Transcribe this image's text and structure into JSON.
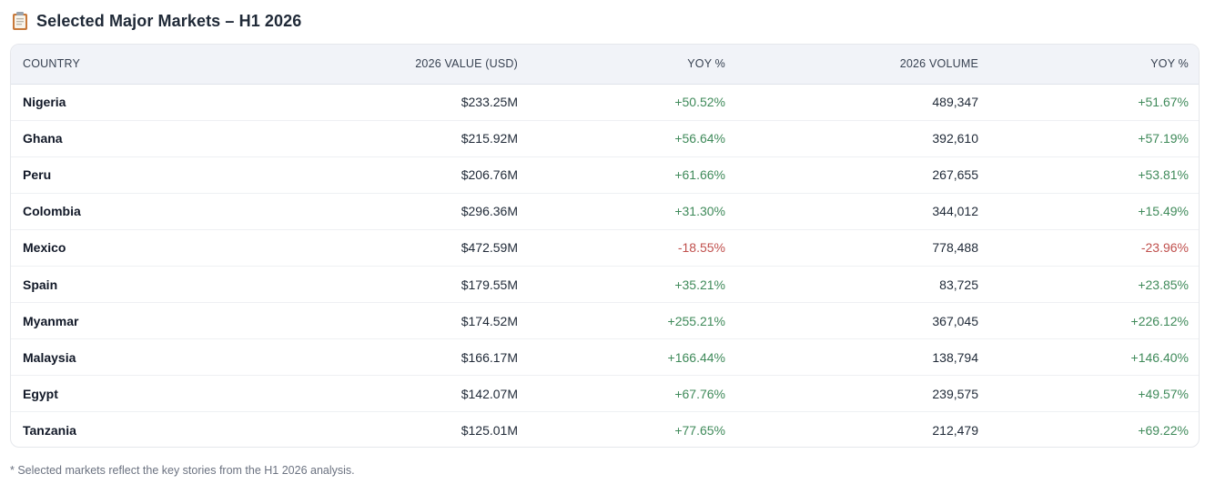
{
  "title": "Selected Major Markets – H1 2026",
  "icon": "clipboard-icon",
  "table": {
    "headers": [
      "COUNTRY",
      "2026 VALUE (USD)",
      "YOY %",
      "2026 VOLUME",
      "YOY %"
    ],
    "rows": [
      {
        "country": "Nigeria",
        "value": "$233.25M",
        "value_yoy": "+50.52%",
        "volume": "489,347",
        "volume_yoy": "+51.67%"
      },
      {
        "country": "Ghana",
        "value": "$215.92M",
        "value_yoy": "+56.64%",
        "volume": "392,610",
        "volume_yoy": "+57.19%"
      },
      {
        "country": "Peru",
        "value": "$206.76M",
        "value_yoy": "+61.66%",
        "volume": "267,655",
        "volume_yoy": "+53.81%"
      },
      {
        "country": "Colombia",
        "value": "$296.36M",
        "value_yoy": "+31.30%",
        "volume": "344,012",
        "volume_yoy": "+15.49%"
      },
      {
        "country": "Mexico",
        "value": "$472.59M",
        "value_yoy": "-18.55%",
        "volume": "778,488",
        "volume_yoy": "-23.96%"
      },
      {
        "country": "Spain",
        "value": "$179.55M",
        "value_yoy": "+35.21%",
        "volume": "83,725",
        "volume_yoy": "+23.85%"
      },
      {
        "country": "Myanmar",
        "value": "$174.52M",
        "value_yoy": "+255.21%",
        "volume": "367,045",
        "volume_yoy": "+226.12%"
      },
      {
        "country": "Malaysia",
        "value": "$166.17M",
        "value_yoy": "+166.44%",
        "volume": "138,794",
        "volume_yoy": "+146.40%"
      },
      {
        "country": "Egypt",
        "value": "$142.07M",
        "value_yoy": "+67.76%",
        "volume": "239,575",
        "volume_yoy": "+49.57%"
      },
      {
        "country": "Tanzania",
        "value": "$125.01M",
        "value_yoy": "+77.65%",
        "volume": "212,479",
        "volume_yoy": "+69.22%"
      }
    ]
  },
  "footnote": "* Selected markets reflect the key stories from the H1 2026 analysis.",
  "colors": {
    "positive": "#3f8a5a",
    "negative": "#c0504d",
    "header_bg": "#f1f3f8"
  }
}
